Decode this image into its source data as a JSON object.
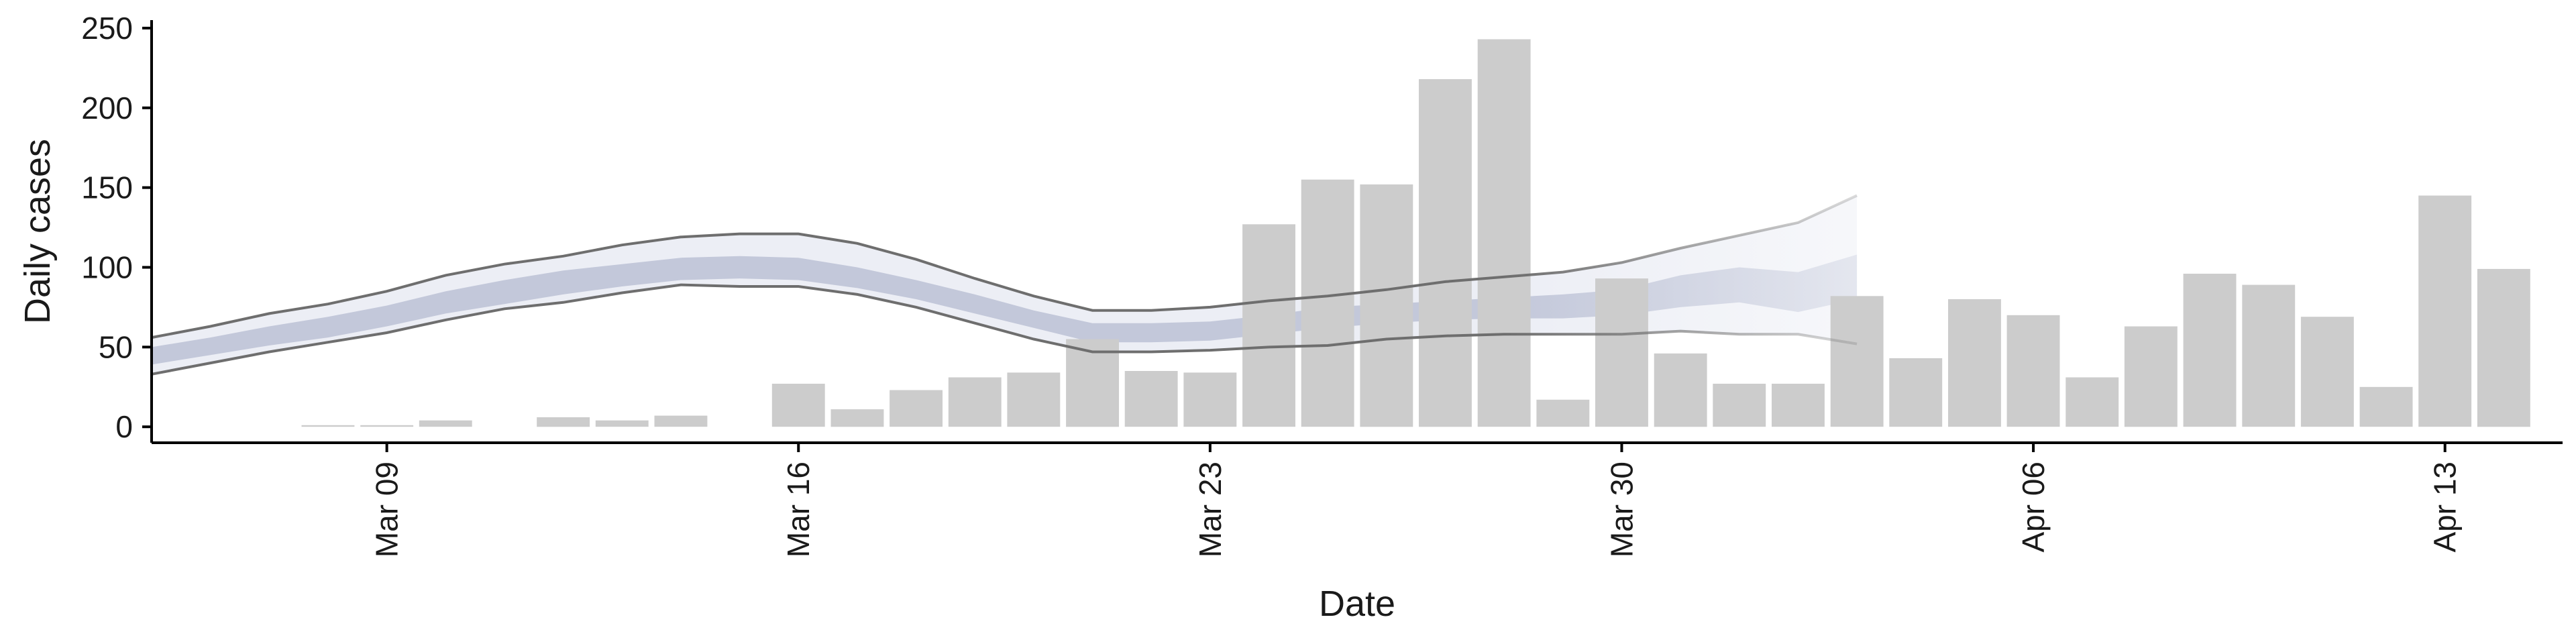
{
  "chart_data": {
    "type": "bar",
    "xlabel": "Date",
    "ylabel": "Daily cases",
    "ylim": [
      -10,
      255
    ],
    "xlim": [
      "2020-03-05",
      "2020-04-15"
    ],
    "grid": false,
    "y_ticks": [
      "0",
      "50",
      "100",
      "150",
      "200",
      "250"
    ],
    "x_ticks": [
      {
        "date": "2020-03-09",
        "label": "Mar 09"
      },
      {
        "date": "2020-03-16",
        "label": "Mar 16"
      },
      {
        "date": "2020-03-23",
        "label": "Mar 23"
      },
      {
        "date": "2020-03-30",
        "label": "Mar 30"
      },
      {
        "date": "2020-04-06",
        "label": "Apr 06"
      },
      {
        "date": "2020-04-13",
        "label": "Apr 13"
      }
    ],
    "bar_color": "#cccccc",
    "band_outer_color": "#eceef5",
    "band_inner_color": "#c3c8da",
    "bound_line_color": "#6e6e6e",
    "bars": [
      {
        "date": "2020-03-08",
        "value": 1
      },
      {
        "date": "2020-03-09",
        "value": 1
      },
      {
        "date": "2020-03-10",
        "value": 4
      },
      {
        "date": "2020-03-12",
        "value": 6
      },
      {
        "date": "2020-03-13",
        "value": 4
      },
      {
        "date": "2020-03-14",
        "value": 7
      },
      {
        "date": "2020-03-16",
        "value": 27
      },
      {
        "date": "2020-03-17",
        "value": 11
      },
      {
        "date": "2020-03-18",
        "value": 23
      },
      {
        "date": "2020-03-19",
        "value": 31
      },
      {
        "date": "2020-03-20",
        "value": 34
      },
      {
        "date": "2020-03-21",
        "value": 55
      },
      {
        "date": "2020-03-22",
        "value": 35
      },
      {
        "date": "2020-03-23",
        "value": 34
      },
      {
        "date": "2020-03-24",
        "value": 127
      },
      {
        "date": "2020-03-25",
        "value": 155
      },
      {
        "date": "2020-03-26",
        "value": 152
      },
      {
        "date": "2020-03-27",
        "value": 218
      },
      {
        "date": "2020-03-28",
        "value": 243
      },
      {
        "date": "2020-03-29",
        "value": 17
      },
      {
        "date": "2020-03-30",
        "value": 93
      },
      {
        "date": "2020-03-31",
        "value": 46
      },
      {
        "date": "2020-04-01",
        "value": 27
      },
      {
        "date": "2020-04-02",
        "value": 27
      },
      {
        "date": "2020-04-03",
        "value": 82
      },
      {
        "date": "2020-04-04",
        "value": 43
      },
      {
        "date": "2020-04-05",
        "value": 80
      },
      {
        "date": "2020-04-06",
        "value": 70
      },
      {
        "date": "2020-04-07",
        "value": 31
      },
      {
        "date": "2020-04-08",
        "value": 63
      },
      {
        "date": "2020-04-09",
        "value": 96
      },
      {
        "date": "2020-04-10",
        "value": 89
      },
      {
        "date": "2020-04-11",
        "value": 69
      },
      {
        "date": "2020-04-12",
        "value": 25
      },
      {
        "date": "2020-04-13",
        "value": 145
      },
      {
        "date": "2020-04-14",
        "value": 99
      }
    ],
    "band": {
      "dates": [
        "2020-03-05",
        "2020-03-06",
        "2020-03-07",
        "2020-03-08",
        "2020-03-09",
        "2020-03-10",
        "2020-03-11",
        "2020-03-12",
        "2020-03-13",
        "2020-03-14",
        "2020-03-15",
        "2020-03-16",
        "2020-03-17",
        "2020-03-18",
        "2020-03-19",
        "2020-03-20",
        "2020-03-21",
        "2020-03-22",
        "2020-03-23",
        "2020-03-24",
        "2020-03-25",
        "2020-03-26",
        "2020-03-27",
        "2020-03-28",
        "2020-03-29",
        "2020-03-30",
        "2020-03-31",
        "2020-04-01",
        "2020-04-02",
        "2020-04-03",
        "2020-04-04",
        "2020-04-05"
      ],
      "upper": [
        56,
        63,
        71,
        77,
        85,
        95,
        102,
        107,
        114,
        119,
        121,
        121,
        115,
        105,
        93,
        82,
        73,
        73,
        75,
        79,
        82,
        86,
        91,
        94,
        97,
        103,
        112,
        120,
        128,
        145,
        null,
        null
      ],
      "lower": [
        33,
        40,
        47,
        53,
        59,
        67,
        74,
        78,
        84,
        89,
        88,
        88,
        83,
        75,
        65,
        55,
        47,
        47,
        48,
        50,
        51,
        55,
        57,
        58,
        58,
        58,
        60,
        58,
        58,
        52,
        null,
        null
      ],
      "inner_upper": [
        50,
        56,
        63,
        69,
        76,
        85,
        92,
        98,
        102,
        106,
        107,
        106,
        100,
        92,
        83,
        73,
        65,
        65,
        66,
        70,
        75,
        77,
        79,
        81,
        83,
        86,
        95,
        100,
        97,
        108,
        null,
        null
      ],
      "inner_lower": [
        39,
        45,
        51,
        56,
        63,
        71,
        77,
        83,
        88,
        92,
        93,
        92,
        87,
        80,
        71,
        62,
        53,
        53,
        54,
        58,
        62,
        65,
        67,
        68,
        68,
        70,
        75,
        78,
        72,
        80,
        null,
        null
      ]
    }
  }
}
